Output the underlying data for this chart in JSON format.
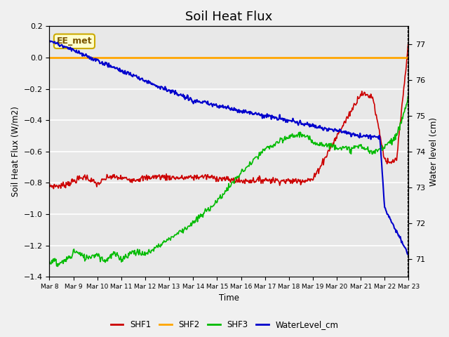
{
  "title": "Soil Heat Flux",
  "xlabel": "Time",
  "ylabel_left": "Soil Heat Flux (W/m2)",
  "ylabel_right": "Water level (cm)",
  "background_color": "#f0f0f0",
  "plot_bg_color": "#e8e8e8",
  "ylim_left": [
    -1.4,
    0.2
  ],
  "ylim_right": [
    70.5,
    77.5
  ],
  "x_tick_labels": [
    "Mar 8",
    "Mar 9",
    "Mar 10",
    "Mar 11",
    "Mar 12",
    "Mar 13",
    "Mar 14",
    "Mar 15",
    "Mar 16",
    "Mar 17",
    "Mar 18",
    "Mar 19",
    "Mar 20",
    "Mar 21",
    "Mar 22",
    "Mar 23"
  ],
  "annotation_text": "EE_met",
  "colors": {
    "SHF1": "#cc0000",
    "SHF2": "#ffa500",
    "SHF3": "#00bb00",
    "WaterLevel": "#0000cc"
  },
  "grid_color": "#ffffff",
  "title_fontsize": 13
}
